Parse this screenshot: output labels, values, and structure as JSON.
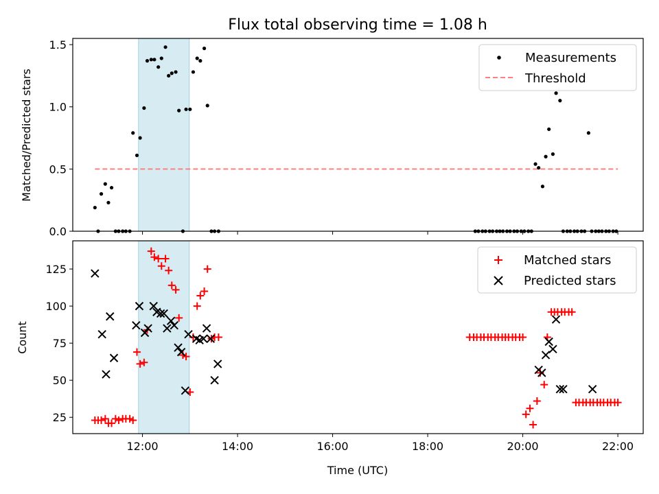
{
  "chart_data": [
    {
      "type": "scatter",
      "title": "Flux total observing time = 1.08 h",
      "ylabel": "Matched/Predicted stars",
      "xlim": [
        "10:32",
        "22:32"
      ],
      "ylim": [
        0,
        1.55
      ],
      "xticks": [
        "12:00",
        "14:00",
        "16:00",
        "18:00",
        "20:00",
        "22:00"
      ],
      "yticks": [
        "0.0",
        "0.5",
        "1.0",
        "1.5"
      ],
      "ytick_values": [
        0,
        0.5,
        1.0,
        1.5
      ],
      "legend": "top-right",
      "highlight_span": [
        "11:55",
        "12:59"
      ],
      "highlight_color": "#add8e6",
      "series": [
        {
          "name": "Measurements",
          "marker": "dot",
          "color": "#000000",
          "x": [
            "11:00",
            "11:04",
            "11:08",
            "11:13",
            "11:17",
            "11:21",
            "11:26",
            "11:30",
            "11:35",
            "11:39",
            "11:44",
            "11:48",
            "11:53",
            "11:57",
            "12:02",
            "12:06",
            "12:11",
            "12:15",
            "12:20",
            "12:24",
            "12:29",
            "12:33",
            "12:37",
            "12:42",
            "12:46",
            "12:51",
            "12:55",
            "13:00",
            "13:04",
            "13:09",
            "13:13",
            "13:18",
            "13:22",
            "13:27",
            "13:31",
            "13:36",
            "19:00",
            "19:04",
            "19:09",
            "19:13",
            "19:18",
            "19:22",
            "19:27",
            "19:31",
            "19:35",
            "19:40",
            "19:44",
            "19:49",
            "19:53",
            "19:58",
            "20:02",
            "20:07",
            "20:11",
            "20:16",
            "20:20",
            "20:25",
            "20:29",
            "20:33",
            "20:38",
            "20:42",
            "20:47",
            "20:51",
            "20:56",
            "21:00",
            "21:05",
            "21:09",
            "21:14",
            "21:18",
            "21:23",
            "21:27",
            "21:32",
            "21:36",
            "21:40",
            "21:45",
            "21:49",
            "21:54",
            "21:58"
          ],
          "y": [
            0.19,
            0.0,
            0.3,
            0.38,
            0.23,
            0.35,
            0.0,
            0.0,
            0.0,
            0.0,
            0.0,
            0.79,
            0.61,
            0.75,
            0.99,
            1.37,
            1.38,
            1.38,
            1.32,
            1.39,
            1.48,
            1.25,
            1.27,
            1.28,
            0.97,
            0.0,
            0.98,
            0.98,
            1.28,
            1.39,
            1.37,
            1.47,
            1.01,
            0.0,
            0.0,
            0.0,
            0.0,
            0.0,
            0.0,
            0.0,
            0.0,
            0.0,
            0.0,
            0.0,
            0.0,
            0.0,
            0.0,
            0.0,
            0.0,
            0.0,
            0.0,
            0.0,
            0.0,
            0.54,
            0.51,
            0.36,
            0.6,
            0.82,
            0.62,
            1.11,
            1.05,
            0.0,
            0.0,
            0.0,
            0.0,
            0.0,
            0.0,
            0.0,
            0.79,
            0.0,
            0.0,
            0.0,
            0.0,
            0.0,
            0.0,
            0.0,
            0.0
          ]
        },
        {
          "name": "Threshold",
          "marker": "dashed-line",
          "color": "#ff7f7f",
          "x": [
            "11:00",
            "22:00"
          ],
          "y": [
            0.5,
            0.5
          ]
        }
      ]
    },
    {
      "type": "scatter",
      "xlabel": "Time (UTC)",
      "ylabel": "Count",
      "xlim": [
        "10:32",
        "22:32"
      ],
      "ylim": [
        14,
        144
      ],
      "xticks": [
        "12:00",
        "14:00",
        "16:00",
        "18:00",
        "20:00",
        "22:00"
      ],
      "yticks": [
        "25",
        "50",
        "75",
        "100",
        "125"
      ],
      "ytick_values": [
        25,
        50,
        75,
        100,
        125
      ],
      "legend": "top-right",
      "highlight_span": [
        "11:55",
        "12:59"
      ],
      "highlight_color": "#add8e6",
      "series": [
        {
          "name": "Matched stars",
          "marker": "plus",
          "color": "#ff0000",
          "x": [
            "11:00",
            "11:04",
            "11:08",
            "11:13",
            "11:17",
            "11:21",
            "11:26",
            "11:30",
            "11:35",
            "11:39",
            "11:44",
            "11:48",
            "11:53",
            "11:57",
            "12:02",
            "12:06",
            "12:11",
            "12:15",
            "12:20",
            "12:24",
            "12:29",
            "12:33",
            "12:37",
            "12:42",
            "12:46",
            "12:51",
            "12:55",
            "13:00",
            "13:04",
            "13:09",
            "13:13",
            "13:18",
            "13:22",
            "13:27",
            "13:31",
            "13:36",
            "18:53",
            "18:58",
            "19:02",
            "19:07",
            "19:11",
            "19:16",
            "19:20",
            "19:25",
            "19:29",
            "19:34",
            "19:38",
            "19:42",
            "19:47",
            "19:51",
            "19:56",
            "20:00",
            "20:04",
            "20:09",
            "20:13",
            "20:18",
            "20:22",
            "20:27",
            "20:31",
            "20:36",
            "20:40",
            "20:44",
            "20:49",
            "20:53",
            "20:58",
            "21:02",
            "21:07",
            "21:11",
            "21:16",
            "21:20",
            "21:25",
            "21:29",
            "21:34",
            "21:38",
            "21:42",
            "21:47",
            "21:51",
            "21:56",
            "22:00"
          ],
          "y": [
            23,
            23,
            23,
            24,
            21,
            21,
            24,
            23,
            24,
            24,
            24,
            23,
            69,
            61,
            62,
            84,
            137,
            133,
            132,
            127,
            132,
            124,
            114,
            111,
            92,
            67,
            66,
            42,
            79,
            100,
            107,
            110,
            125,
            78,
            79,
            79,
            79,
            79,
            79,
            79,
            79,
            79,
            79,
            79,
            79,
            79,
            79,
            79,
            79,
            79,
            79,
            79,
            27,
            31,
            20,
            36,
            55,
            47,
            79,
            96,
            96,
            96,
            96,
            96,
            96,
            96,
            35,
            35,
            35,
            35,
            35,
            35,
            35,
            35,
            35,
            35,
            35,
            35,
            35
          ]
        },
        {
          "name": "Predicted stars",
          "marker": "x",
          "color": "#000000",
          "x": [
            "11:00",
            "11:09",
            "11:14",
            "11:19",
            "11:24",
            "11:52",
            "11:56",
            "12:03",
            "12:07",
            "12:14",
            "12:18",
            "12:23",
            "12:27",
            "12:31",
            "12:36",
            "12:40",
            "12:45",
            "12:49",
            "12:54",
            "12:58",
            "13:08",
            "13:12",
            "13:17",
            "13:21",
            "13:26",
            "13:31",
            "13:35",
            "20:20",
            "20:24",
            "20:29",
            "20:33",
            "20:38",
            "20:42",
            "20:47",
            "20:51",
            "21:28"
          ],
          "y": [
            122,
            81,
            54,
            93,
            65,
            87,
            100,
            82,
            85,
            100,
            96,
            95,
            95,
            85,
            90,
            87,
            72,
            69,
            43,
            81,
            78,
            77,
            78,
            85,
            78,
            50,
            61,
            57,
            55,
            67,
            76,
            71,
            91,
            44,
            44,
            44
          ]
        }
      ]
    }
  ]
}
